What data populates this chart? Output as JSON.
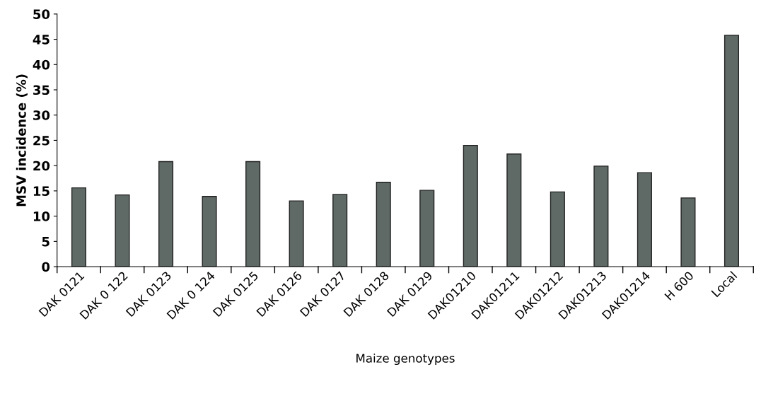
{
  "chart_data": {
    "type": "bar",
    "xlabel": "Maize genotypes",
    "ylabel": "MSV incidence (%)",
    "categories": [
      "DAK 0121",
      "DAK 0 122",
      "DAK 0123",
      "DAK 0 124",
      "DAK 0125",
      "DAK 0126",
      "DAK 0127",
      "DAK 0128",
      "DAK 0129",
      "DAK01210",
      "DAK01211",
      "DAK01212",
      "DAK01213",
      "DAK01214",
      "H 600",
      "Local"
    ],
    "values": [
      15.6,
      14.2,
      20.8,
      13.9,
      20.8,
      13.0,
      14.3,
      16.7,
      15.1,
      24.0,
      22.3,
      14.8,
      19.9,
      18.6,
      13.6,
      45.8
    ],
    "color": "#5f6a66",
    "ylim": [
      0,
      50
    ],
    "yticks": [
      0,
      5,
      10,
      15,
      20,
      25,
      30,
      35,
      40,
      45,
      50
    ],
    "grid": false
  }
}
